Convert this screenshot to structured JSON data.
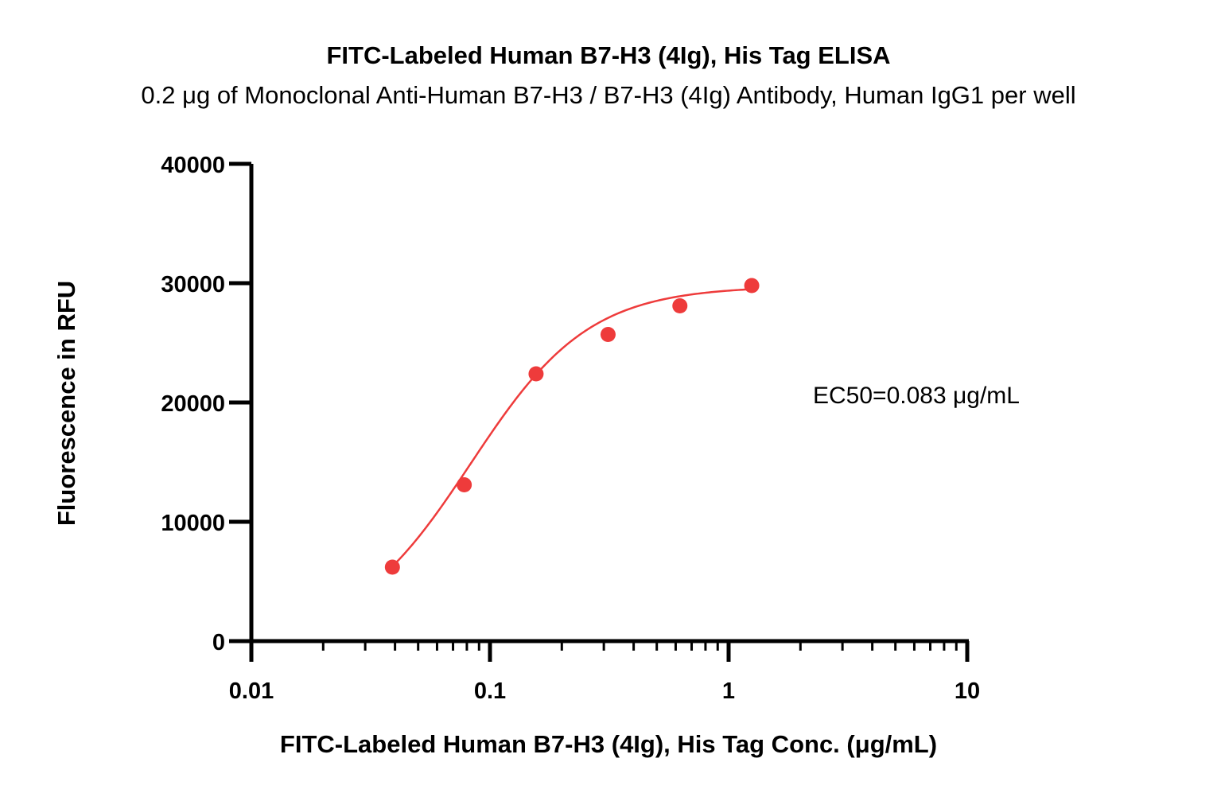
{
  "chart_data": {
    "type": "scatter",
    "title": "FITC-Labeled Human B7-H3 (4Ig), His Tag ELISA",
    "subtitle": "0.2 μg of Monoclonal Anti-Human B7-H3 / B7-H3 (4Ig) Antibody, Human IgG1 per well",
    "xlabel": "FITC-Labeled Human B7-H3 (4Ig), His Tag Conc. (μg/mL)",
    "ylabel": "Fluorescence in RFU",
    "x_scale": "log",
    "xlim": [
      0.01,
      10
    ],
    "ylim": [
      0,
      40000
    ],
    "x_ticks": [
      0.01,
      0.1,
      1,
      10
    ],
    "x_tick_labels": [
      "0.01",
      "0.1",
      "1",
      "10"
    ],
    "y_ticks": [
      0,
      10000,
      20000,
      30000,
      40000
    ],
    "y_tick_labels": [
      "0",
      "10000",
      "20000",
      "30000",
      "40000"
    ],
    "grid": false,
    "series": [
      {
        "color": "#ee3b3b",
        "x": [
          0.039,
          0.078,
          0.156,
          0.3125,
          0.625,
          1.25
        ],
        "y": [
          6200,
          13100,
          22400,
          25700,
          28100,
          29800
        ]
      }
    ],
    "fit_curve": {
      "color": "#ee3b3b",
      "ec50": 0.083,
      "bottom": 0,
      "top": 29750,
      "hill": 1.75
    },
    "annotation": "EC50=0.083 μg/mL"
  }
}
